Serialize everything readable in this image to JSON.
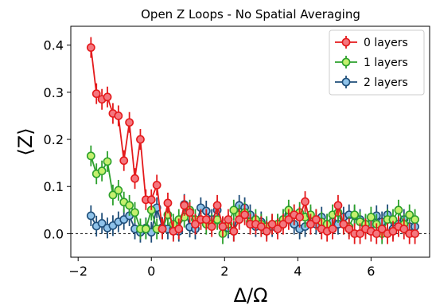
{
  "chart_data": {
    "type": "scatter",
    "title": "Open Z Loops - No Spatial Averaging",
    "xlabel": "Δ/Ω",
    "ylabel": "⟨Z⟩",
    "xlim": [
      -2.2,
      7.6
    ],
    "ylim": [
      -0.05,
      0.44
    ],
    "xticks": [
      -2,
      0,
      2,
      4,
      6
    ],
    "xtick_labels": [
      "−2",
      "0",
      "2",
      "4",
      "6"
    ],
    "yticks": [
      0.0,
      0.1,
      0.2,
      0.3,
      0.4
    ],
    "ytick_labels": [
      "0.0",
      "0.1",
      "0.2",
      "0.3",
      "0.4"
    ],
    "reference_line": {
      "y": 0.0,
      "style": "dashed"
    },
    "legend_position": "top-right",
    "error_bar": 0.022,
    "x": [
      -1.65,
      -1.5,
      -1.35,
      -1.2,
      -1.05,
      -0.9,
      -0.75,
      -0.6,
      -0.45,
      -0.3,
      -0.15,
      0.0,
      0.15,
      0.3,
      0.45,
      0.6,
      0.75,
      0.9,
      1.05,
      1.2,
      1.35,
      1.5,
      1.65,
      1.8,
      1.95,
      2.1,
      2.25,
      2.4,
      2.55,
      2.7,
      2.85,
      3.0,
      3.15,
      3.3,
      3.45,
      3.6,
      3.75,
      3.9,
      4.05,
      4.2,
      4.35,
      4.5,
      4.65,
      4.8,
      4.95,
      5.1,
      5.25,
      5.4,
      5.55,
      5.7,
      5.85,
      6.0,
      6.15,
      6.3,
      6.45,
      6.6,
      6.75,
      6.9,
      7.05,
      7.2
    ],
    "series": [
      {
        "name": "0 layers",
        "color": "#e41a1c",
        "fill": "#f4777f",
        "values": [
          0.395,
          0.297,
          0.285,
          0.29,
          0.255,
          0.25,
          0.155,
          0.236,
          0.117,
          0.2,
          0.072,
          0.072,
          0.103,
          0.01,
          0.065,
          0.005,
          0.01,
          0.06,
          0.045,
          0.02,
          0.03,
          0.03,
          0.015,
          0.06,
          0.015,
          0.03,
          0.005,
          0.03,
          0.04,
          0.02,
          0.02,
          0.015,
          0.005,
          0.02,
          0.01,
          0.02,
          0.03,
          0.04,
          0.035,
          0.068,
          0.02,
          0.03,
          0.01,
          0.005,
          0.01,
          0.06,
          0.02,
          0.01,
          0.0,
          0.0,
          0.01,
          0.005,
          0.0,
          0.01,
          0.0,
          0.005,
          0.015,
          0.01,
          0.0,
          0.0
        ]
      },
      {
        "name": "1 layers",
        "color": "#2ca02c",
        "fill": "#c5f06e",
        "values": [
          0.165,
          0.127,
          0.133,
          0.153,
          0.082,
          0.092,
          0.067,
          0.06,
          0.045,
          0.01,
          0.01,
          0.05,
          0.01,
          0.01,
          0.04,
          0.02,
          0.03,
          0.035,
          0.05,
          0.03,
          0.03,
          0.02,
          0.02,
          0.03,
          0.0,
          0.02,
          0.05,
          0.04,
          0.045,
          0.025,
          0.03,
          0.02,
          0.015,
          0.02,
          0.02,
          0.03,
          0.05,
          0.04,
          0.045,
          0.035,
          0.04,
          0.03,
          0.025,
          0.02,
          0.04,
          0.045,
          0.02,
          0.015,
          0.04,
          0.025,
          0.02,
          0.035,
          0.02,
          0.0,
          0.03,
          0.03,
          0.05,
          0.02,
          0.04,
          0.03
        ]
      },
      {
        "name": "2 layers",
        "color": "#1f4e79",
        "fill": "#8fc3ea",
        "values": [
          0.038,
          0.016,
          0.022,
          0.012,
          0.017,
          0.025,
          0.03,
          0.038,
          0.01,
          0.003,
          0.012,
          0.003,
          0.055,
          0.013,
          0.01,
          0.01,
          0.005,
          0.062,
          0.014,
          0.01,
          0.055,
          0.048,
          0.03,
          0.05,
          0.015,
          0.012,
          0.005,
          0.06,
          0.055,
          0.04,
          0.015,
          0.025,
          0.01,
          0.015,
          0.02,
          0.03,
          0.04,
          0.02,
          0.01,
          0.015,
          0.035,
          0.02,
          0.035,
          0.02,
          0.025,
          0.02,
          0.035,
          0.04,
          0.038,
          0.03,
          0.018,
          0.02,
          0.038,
          0.025,
          0.04,
          0.01,
          0.02,
          0.03,
          0.015,
          0.015
        ]
      }
    ]
  }
}
